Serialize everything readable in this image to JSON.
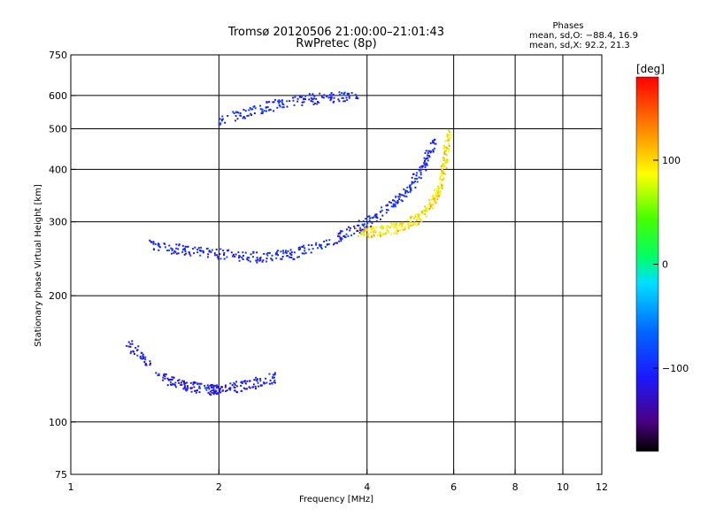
{
  "chart_data": {
    "type": "scatter",
    "title": "Tromsø 20120506 21:00:00–21:01:43",
    "subtitle": "RwPretec (8p)",
    "xlabel": "Frequency [MHz]",
    "ylabel": "Stationary phase Virtual Height [km]",
    "xscale": "log",
    "yscale": "log",
    "xlim": [
      1,
      12
    ],
    "ylim": [
      75,
      750
    ],
    "grid": true,
    "x_ticks": [
      1,
      2,
      4,
      6,
      8,
      10,
      12
    ],
    "x_tick_labels": [
      "1",
      "2",
      "4",
      "6",
      "8",
      "10",
      "12"
    ],
    "y_ticks": [
      75,
      100,
      200,
      300,
      400,
      500,
      600,
      750
    ],
    "y_tick_labels": [
      "75",
      "100",
      "200",
      "300",
      "400",
      "500",
      "600",
      "750"
    ],
    "stats": {
      "title": "Phases",
      "line1": "mean, sd,O: −88.4, 16.9",
      "line2": "mean, sd,X:  92.2, 21.3"
    },
    "colorbar": {
      "label": "[deg]",
      "range": [
        -180,
        180
      ],
      "ticks": [
        100,
        0,
        -100
      ],
      "tick_labels": [
        "100",
        "0",
        "−100"
      ]
    },
    "echo_traces": [
      {
        "name": "low E-layer echoes",
        "x": [
          1.3,
          1.5,
          1.7,
          1.9,
          2.0,
          2.3,
          2.6
        ],
        "y": [
          155,
          130,
          122,
          120,
          120,
          123,
          128
        ],
        "phase": -110
      },
      {
        "name": "O-mode F trace",
        "x": [
          1.45,
          1.7,
          2.0,
          2.4,
          2.8,
          3.3,
          3.8,
          4.3,
          4.8,
          5.2,
          5.5
        ],
        "y": [
          265,
          258,
          252,
          248,
          252,
          268,
          290,
          318,
          355,
          410,
          480
        ],
        "phase": -100
      },
      {
        "name": "X-mode F trace",
        "x": [
          3.8,
          4.2,
          4.6,
          5.0,
          5.4,
          5.6,
          5.75,
          5.85
        ],
        "y": [
          285,
          285,
          292,
          305,
          330,
          365,
          420,
          500
        ],
        "phase": 95
      },
      {
        "name": "multiple echoes",
        "x": [
          2.0,
          2.4,
          2.8,
          3.3,
          3.8
        ],
        "y": [
          520,
          560,
          585,
          595,
          600
        ],
        "phase": -100
      }
    ]
  }
}
